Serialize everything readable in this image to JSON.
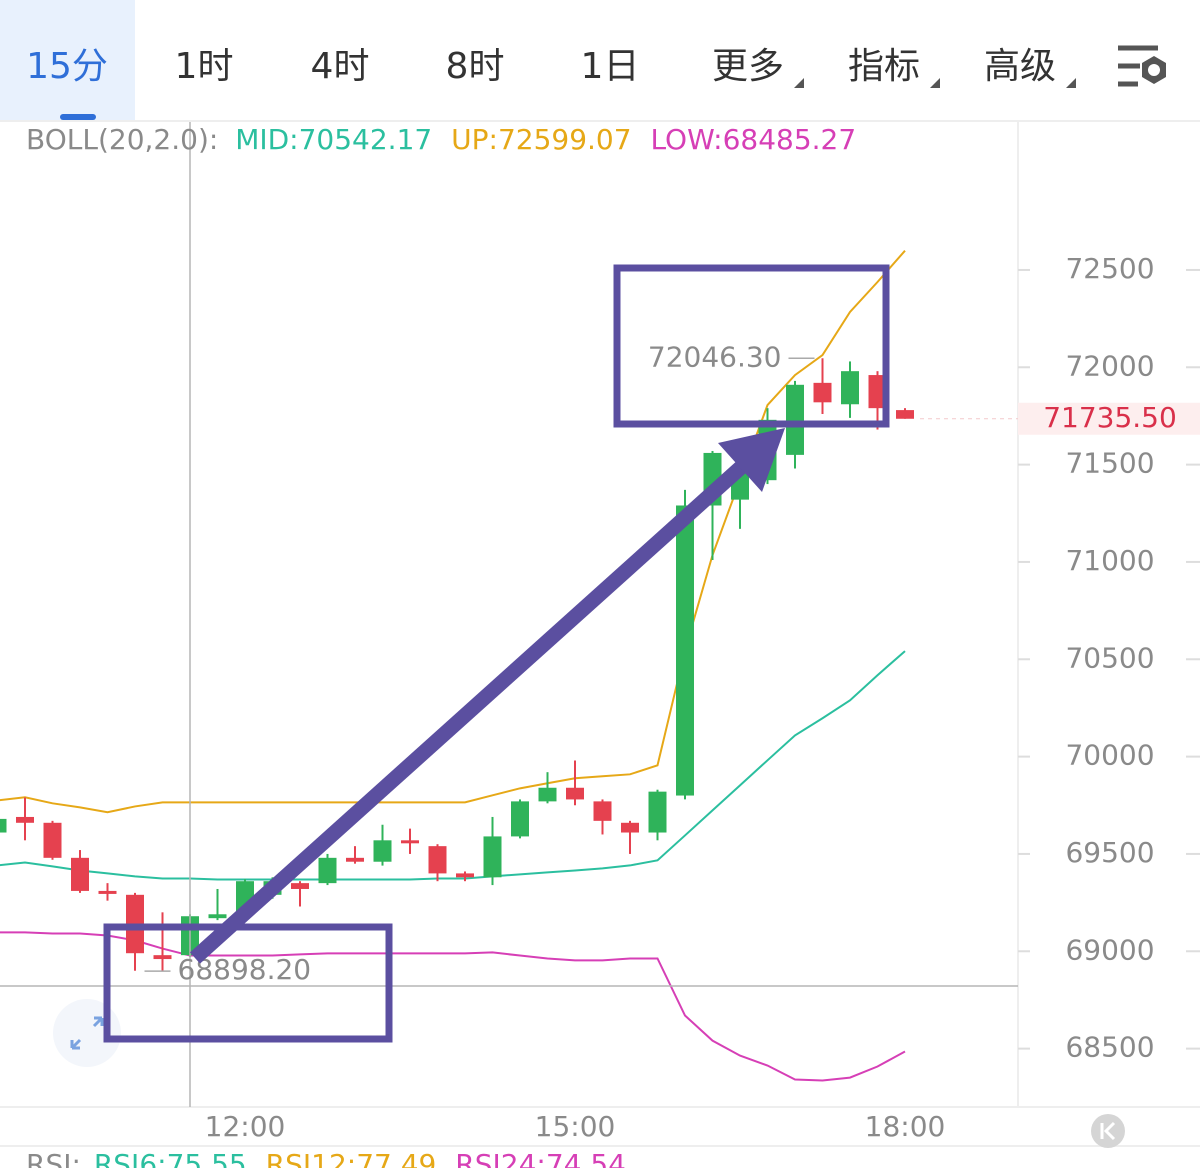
{
  "tabs": [
    "15分",
    "1时",
    "4时",
    "8时",
    "1日",
    "更多",
    "指标",
    "高级"
  ],
  "active_tab": 0,
  "chart_data": {
    "type": "candlestick",
    "indicator_label": "BOLL(20,2.0):",
    "categories": [
      null,
      null,
      null,
      null,
      null,
      null,
      null,
      null,
      null,
      "12:00",
      null,
      null,
      null,
      null,
      null,
      null,
      null,
      null,
      null,
      null,
      null,
      "15:00",
      null,
      null,
      null,
      null,
      null,
      null,
      null,
      null,
      null,
      null,
      null,
      "18:00"
    ],
    "open": [
      69610,
      69690,
      69660,
      69480,
      69310,
      69290,
      68980,
      68980,
      69170,
      69200,
      69290,
      69350,
      69350,
      69480,
      69460,
      69570,
      69540,
      69400,
      69380,
      69590,
      69770,
      69840,
      69770,
      69660,
      69610,
      69800,
      71290,
      71320,
      71420,
      71550,
      71920,
      71810,
      71960,
      71780
    ],
    "high": [
      69690,
      69790,
      69670,
      69520,
      69350,
      69300,
      69200,
      69190,
      69320,
      69370,
      69380,
      69360,
      69500,
      69540,
      69650,
      69630,
      69550,
      69410,
      69690,
      69780,
      69920,
      69980,
      69780,
      69670,
      69830,
      71370,
      71570,
      71480,
      71790,
      71930,
      72046.3,
      72030,
      71980,
      71790
    ],
    "low": [
      69600,
      69570,
      69470,
      69300,
      69260,
      68900,
      68898.2,
      68970,
      69160,
      69190,
      69270,
      69230,
      69340,
      69450,
      69440,
      69500,
      69360,
      69360,
      69340,
      69580,
      69760,
      69750,
      69600,
      69500,
      69570,
      69780,
      71010,
      71170,
      71400,
      71480,
      71760,
      71740,
      71680,
      71735.5
    ],
    "close": [
      69680,
      69660,
      69480,
      69310,
      69300,
      68990,
      68960,
      69180,
      69190,
      69360,
      69360,
      69320,
      69480,
      69460,
      69570,
      69560,
      69400,
      69380,
      69590,
      69770,
      69840,
      69780,
      69670,
      69610,
      69820,
      71290,
      71560,
      71470,
      71730,
      71910,
      71820,
      71980,
      71790,
      71735.5
    ],
    "up_color": "#2fb35a",
    "down_color": "#e5414f",
    "series": [
      {
        "name": "MID:70542.17",
        "color": "#2bbf9f",
        "values": [
          69441,
          69456,
          69436,
          69415,
          69400,
          69385,
          69374,
          69374,
          69369,
          69369,
          69369,
          69369,
          69369,
          69369,
          69369,
          69369,
          69374,
          69374,
          69385,
          69395,
          69405,
          69415,
          69426,
          69441,
          69467,
          69595,
          69724,
          69852,
          69981,
          70109,
          70197,
          70289,
          70418,
          70542.17
        ]
      },
      {
        "name": "UP:72599.07",
        "color": "#e6a817",
        "values": [
          69775,
          69791,
          69760,
          69739,
          69714,
          69744,
          69765,
          69765,
          69765,
          69765,
          69765,
          69765,
          69765,
          69765,
          69765,
          69765,
          69765,
          69765,
          69801,
          69837,
          69863,
          69889,
          69899,
          69909,
          69955,
          70546,
          71035,
          71420,
          71806,
          71960,
          72063,
          72284,
          72438,
          72599.07
        ]
      },
      {
        "name": "LOW:68485.27",
        "color": "#d63fb6",
        "values": [
          69097,
          69097,
          69091,
          69091,
          69081,
          69056,
          69014,
          68978,
          68978,
          68978,
          68978,
          68984,
          68989,
          68989,
          68989,
          68989,
          68989,
          68989,
          68994,
          68978,
          68963,
          68953,
          68953,
          68963,
          68963,
          68670,
          68541,
          68464,
          68413,
          68341,
          68336,
          68351,
          68408,
          68485.27
        ]
      }
    ],
    "ylim": [
      68200,
      73260
    ],
    "yticks": [
      68500,
      69000,
      69500,
      70000,
      70500,
      71000,
      71500,
      72000,
      72500
    ],
    "high_marker": {
      "value": 72046.3,
      "label": "72046.30"
    },
    "low_marker": {
      "value": 68898.2,
      "label": "68898.20"
    },
    "last_price": {
      "value": 71735.5,
      "label": "71735.50"
    }
  },
  "rsi_legend": {
    "label": "RSI:",
    "items": [
      "RSI6:75.55",
      "RSI12:77.49",
      "RSI24:74.54"
    ]
  }
}
